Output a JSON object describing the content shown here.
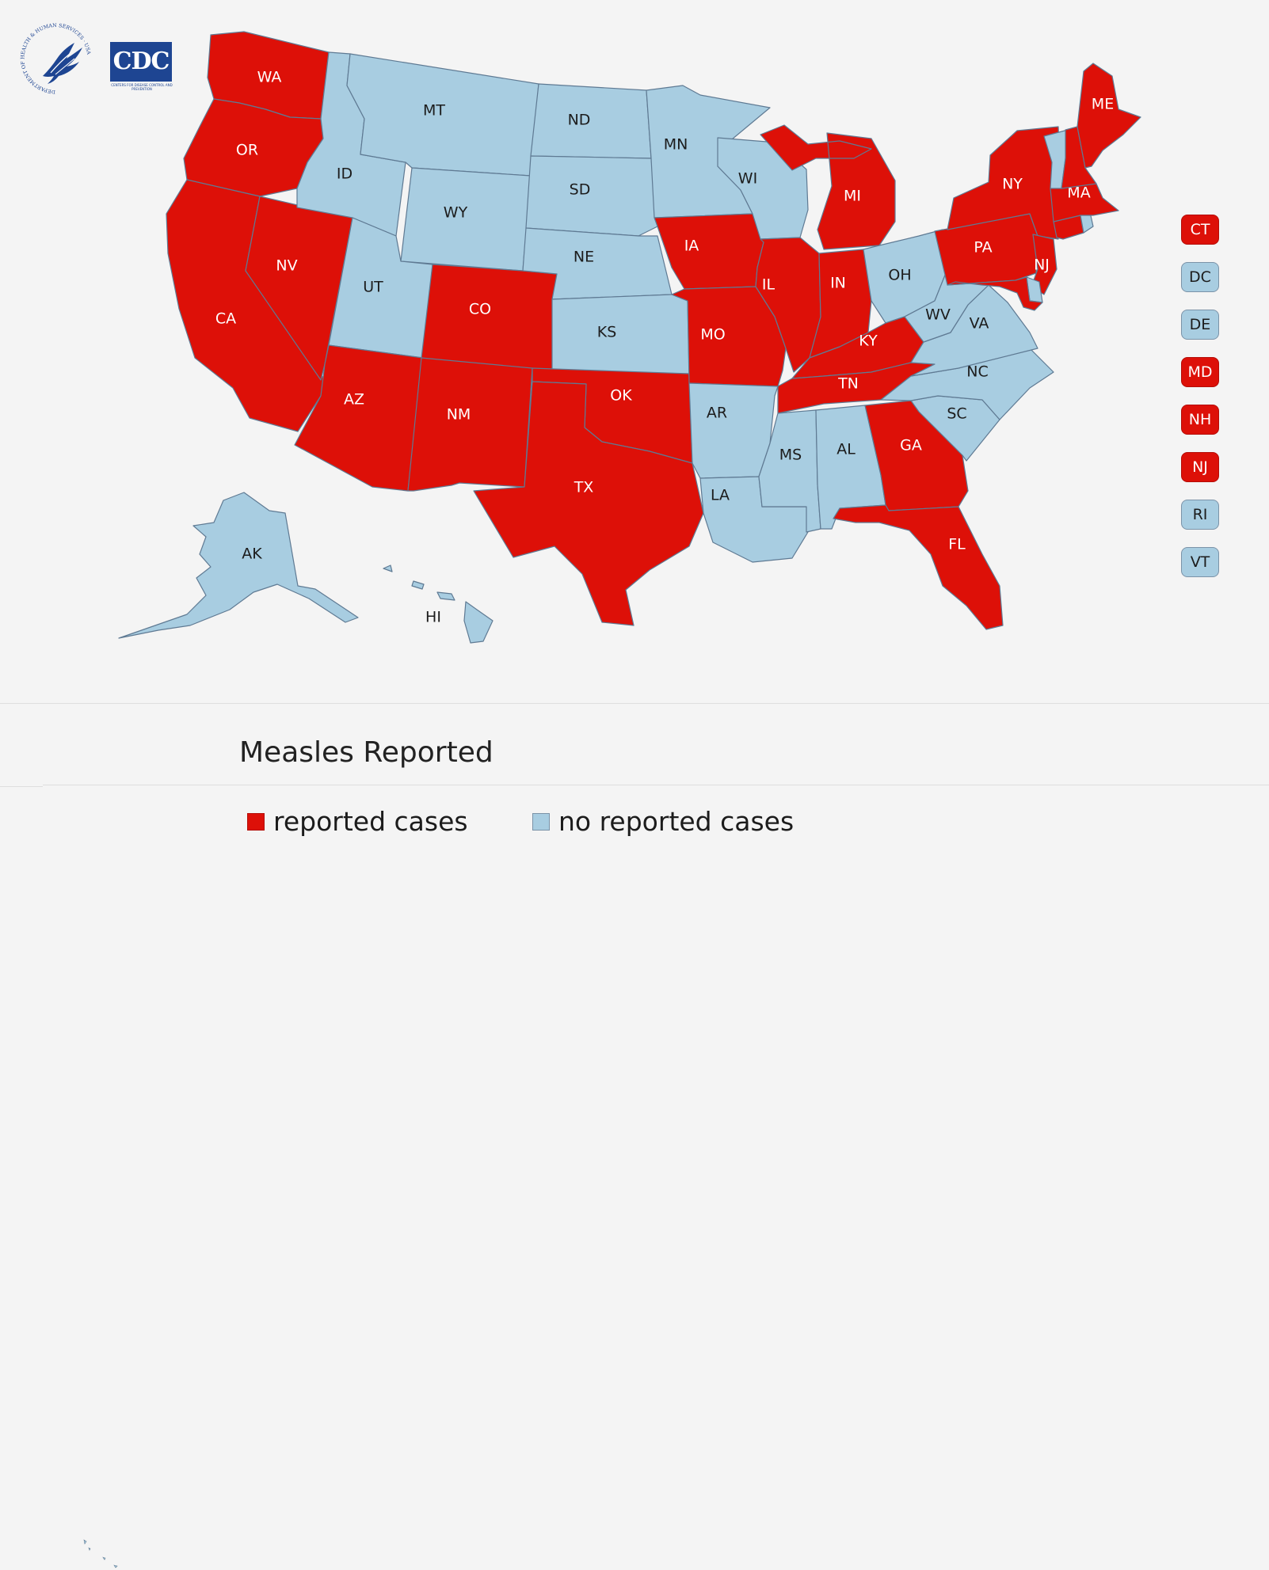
{
  "colors": {
    "reported": "#dd1008",
    "none": "#a8cde1",
    "border": "#5f7a93",
    "background": "#f4f4f4",
    "label_on_reported": "#ffffff",
    "label_on_none": "#1c1c1c"
  },
  "logos": {
    "hhs": {
      "name": "hhs-seal-logo",
      "text": "DEPARTMENT OF HEALTH & HUMAN SERVICES · USA"
    },
    "cdc": {
      "name": "cdc-logo",
      "text": "CDC",
      "subtext": "CENTERS FOR DISEASE CONTROL AND PREVENTION"
    }
  },
  "states": [
    {
      "abbr": "WA",
      "status": "reported"
    },
    {
      "abbr": "OR",
      "status": "reported"
    },
    {
      "abbr": "CA",
      "status": "reported"
    },
    {
      "abbr": "NV",
      "status": "reported"
    },
    {
      "abbr": "ID",
      "status": "none"
    },
    {
      "abbr": "MT",
      "status": "none"
    },
    {
      "abbr": "WY",
      "status": "none"
    },
    {
      "abbr": "UT",
      "status": "none"
    },
    {
      "abbr": "AZ",
      "status": "reported"
    },
    {
      "abbr": "CO",
      "status": "reported"
    },
    {
      "abbr": "NM",
      "status": "reported"
    },
    {
      "abbr": "ND",
      "status": "none"
    },
    {
      "abbr": "SD",
      "status": "none"
    },
    {
      "abbr": "NE",
      "status": "none"
    },
    {
      "abbr": "KS",
      "status": "none"
    },
    {
      "abbr": "OK",
      "status": "reported"
    },
    {
      "abbr": "TX",
      "status": "reported"
    },
    {
      "abbr": "MN",
      "status": "none"
    },
    {
      "abbr": "IA",
      "status": "reported"
    },
    {
      "abbr": "MO",
      "status": "reported"
    },
    {
      "abbr": "AR",
      "status": "none"
    },
    {
      "abbr": "LA",
      "status": "none"
    },
    {
      "abbr": "WI",
      "status": "none"
    },
    {
      "abbr": "IL",
      "status": "reported"
    },
    {
      "abbr": "MI",
      "status": "reported"
    },
    {
      "abbr": "IN",
      "status": "reported"
    },
    {
      "abbr": "OH",
      "status": "none"
    },
    {
      "abbr": "KY",
      "status": "reported"
    },
    {
      "abbr": "TN",
      "status": "reported"
    },
    {
      "abbr": "MS",
      "status": "none"
    },
    {
      "abbr": "AL",
      "status": "none"
    },
    {
      "abbr": "GA",
      "status": "reported"
    },
    {
      "abbr": "FL",
      "status": "reported"
    },
    {
      "abbr": "SC",
      "status": "none"
    },
    {
      "abbr": "NC",
      "status": "none"
    },
    {
      "abbr": "VA",
      "status": "none"
    },
    {
      "abbr": "WV",
      "status": "none"
    },
    {
      "abbr": "PA",
      "status": "reported"
    },
    {
      "abbr": "NY",
      "status": "reported"
    },
    {
      "abbr": "NJ",
      "status": "reported"
    },
    {
      "abbr": "DE",
      "status": "none"
    },
    {
      "abbr": "MD",
      "status": "reported"
    },
    {
      "abbr": "CT",
      "status": "reported"
    },
    {
      "abbr": "RI",
      "status": "none"
    },
    {
      "abbr": "MA",
      "status": "reported"
    },
    {
      "abbr": "VT",
      "status": "none"
    },
    {
      "abbr": "NH",
      "status": "reported"
    },
    {
      "abbr": "ME",
      "status": "reported"
    },
    {
      "abbr": "AK",
      "status": "none"
    },
    {
      "abbr": "HI",
      "status": "none"
    }
  ],
  "small_states": [
    {
      "abbr": "CT",
      "status": "reported"
    },
    {
      "abbr": "DC",
      "status": "none"
    },
    {
      "abbr": "DE",
      "status": "none"
    },
    {
      "abbr": "MD",
      "status": "reported"
    },
    {
      "abbr": "NH",
      "status": "reported"
    },
    {
      "abbr": "NJ",
      "status": "reported"
    },
    {
      "abbr": "RI",
      "status": "none"
    },
    {
      "abbr": "VT",
      "status": "none"
    }
  ],
  "legend": {
    "title": "Measles Reported",
    "reported_label": "reported cases",
    "none_label": "no reported cases"
  }
}
